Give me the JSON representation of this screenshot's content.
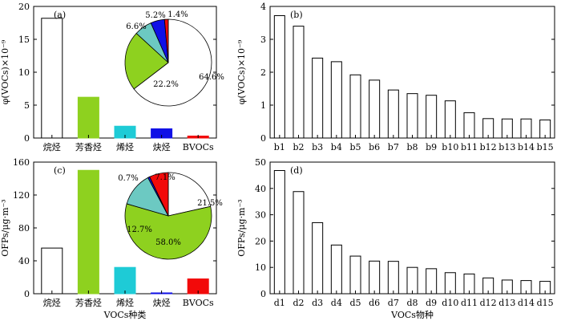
{
  "chart_data": [
    {
      "id": "a",
      "type": "bar",
      "panel_label": "(a)",
      "ylabel": "φ(VOCs)×10⁻⁹",
      "xlabel": "",
      "ylim": [
        0,
        20
      ],
      "yticks": [
        0,
        5,
        10,
        15,
        20
      ],
      "categories": [
        "烷烃",
        "芳香烃",
        "烯烃",
        "炔烃",
        "BVOCs"
      ],
      "values": [
        18.2,
        6.2,
        1.8,
        1.4,
        0.3
      ],
      "colors": [
        "#ffffff",
        "#8ed11f",
        "#1ecbd6",
        "#1010e6",
        "#f20a0a"
      ],
      "pie": {
        "type": "pie",
        "slices": [
          {
            "value": 64.6,
            "label": "64.6%",
            "color": "#ffffff"
          },
          {
            "value": 22.2,
            "label": "22.2%",
            "color": "#8ed11f"
          },
          {
            "value": 6.6,
            "label": "6.6%",
            "color": "#6cc9c2"
          },
          {
            "value": 5.2,
            "label": "5.2%",
            "color": "#1010e6"
          },
          {
            "value": 1.4,
            "label": "1.4%",
            "color": "#f20a0a"
          }
        ]
      }
    },
    {
      "id": "b",
      "type": "bar",
      "panel_label": "(b)",
      "ylabel": "φ(VOCs)×10⁻⁹",
      "xlabel": "",
      "ylim": [
        0,
        4
      ],
      "yticks": [
        0,
        1,
        2,
        3,
        4
      ],
      "categories": [
        "b1",
        "b2",
        "b3",
        "b4",
        "b5",
        "b6",
        "b7",
        "b8",
        "b9",
        "b10",
        "b11",
        "b12",
        "b13",
        "b14",
        "b15"
      ],
      "values": [
        3.72,
        3.4,
        2.43,
        2.32,
        1.92,
        1.76,
        1.46,
        1.35,
        1.3,
        1.13,
        0.77,
        0.59,
        0.58,
        0.58,
        0.55
      ]
    },
    {
      "id": "c",
      "type": "bar",
      "panel_label": "(c)",
      "ylabel": "OFPs/μg·m⁻³",
      "xlabel": "VOCs种类",
      "ylim": [
        0,
        160
      ],
      "yticks": [
        0,
        40,
        80,
        120,
        160
      ],
      "categories": [
        "烷烃",
        "芳香烃",
        "烯烃",
        "炔烃",
        "BVOCs"
      ],
      "values": [
        55.5,
        150,
        32,
        1,
        18
      ],
      "colors": [
        "#ffffff",
        "#8ed11f",
        "#1ecbd6",
        "#1010e6",
        "#f20a0a"
      ],
      "pie": {
        "type": "pie",
        "slices": [
          {
            "value": 21.5,
            "label": "21.5%",
            "color": "#ffffff"
          },
          {
            "value": 58.0,
            "label": "58.0%",
            "color": "#8ed11f"
          },
          {
            "value": 12.7,
            "label": "12.7%",
            "color": "#6cc9c2"
          },
          {
            "value": 0.7,
            "label": "0.7%",
            "color": "#1010e6"
          },
          {
            "value": 7.1,
            "label": "7.1%",
            "color": "#f20a0a"
          }
        ]
      }
    },
    {
      "id": "d",
      "type": "bar",
      "panel_label": "(d)",
      "ylabel": "OFPs/μg·m⁻³",
      "xlabel": "VOCs物种",
      "ylim": [
        0,
        50
      ],
      "yticks": [
        0,
        10,
        20,
        30,
        40,
        50
      ],
      "categories": [
        "d1",
        "d2",
        "d3",
        "d4",
        "d5",
        "d6",
        "d7",
        "d8",
        "d9",
        "d10",
        "d11",
        "d12",
        "d13",
        "d14",
        "d15"
      ],
      "values": [
        46.8,
        38.8,
        27,
        18.5,
        14.3,
        12.4,
        12.3,
        10,
        9.5,
        8,
        7.5,
        6,
        5.2,
        5,
        4.7
      ]
    }
  ]
}
